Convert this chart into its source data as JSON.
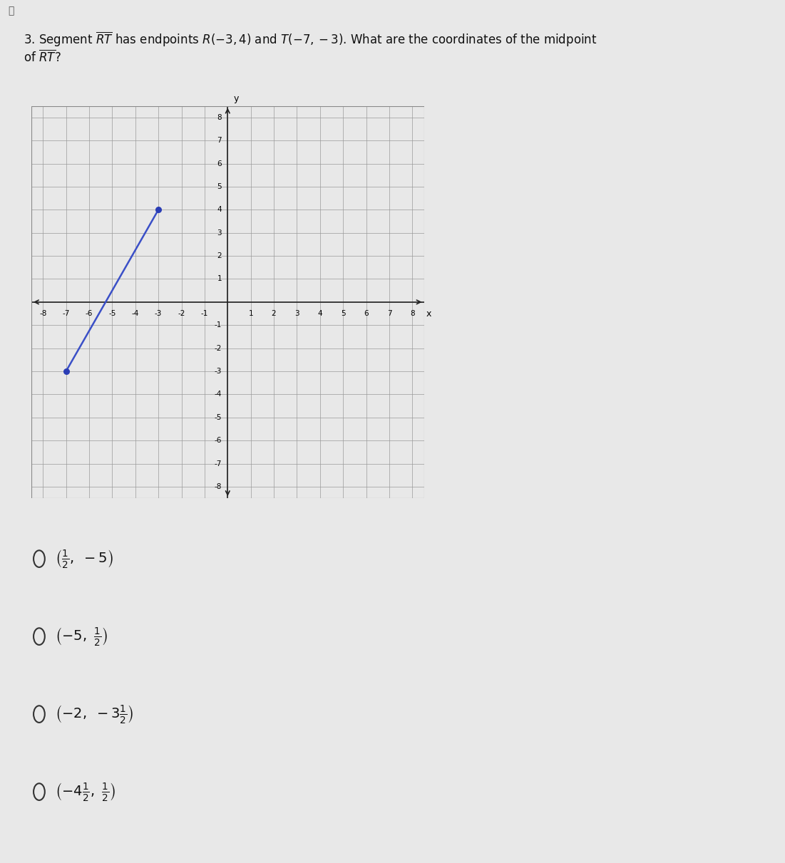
{
  "R": [
    -3,
    4
  ],
  "T": [
    -7,
    -3
  ],
  "line_color": "#3a4fc7",
  "point_color": "#2a3db5",
  "page_bg": "#e8e8e8",
  "graph_bg": "#ffffff",
  "grid_color": "#999999",
  "axis_color": "#222222",
  "text_color": "#111111",
  "choice_texts": [
    "$\\left(\\frac{1}{2},\\ -5\\right)$",
    "$\\left(-5,\\ \\frac{1}{2}\\right)$",
    "$\\left(-2,\\ -3\\frac{1}{2}\\right)$",
    "$\\left(-4\\frac{1}{2},\\ \\frac{1}{2}\\right)$"
  ],
  "font_size_q": 12,
  "font_size_choices": 14,
  "axis_range": 8
}
